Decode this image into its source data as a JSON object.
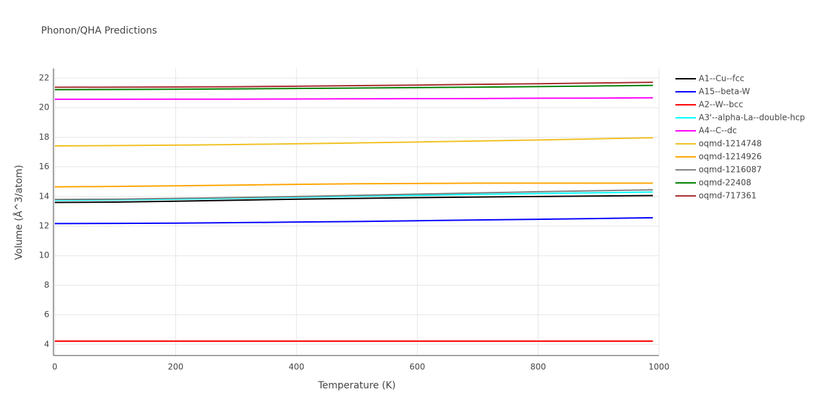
{
  "chart_data": {
    "type": "line",
    "title": "Phonon/QHA Predictions",
    "x_label": "Temperature (K)",
    "y_label": "Volume (Å^3/atom)",
    "x": [
      0,
      100,
      200,
      300,
      400,
      500,
      600,
      700,
      800,
      900,
      990
    ],
    "xlim": [
      0,
      1000
    ],
    "xticks": [
      0,
      200,
      400,
      600,
      800,
      1000
    ],
    "ylim": [
      3.25,
      22.65
    ],
    "yticks": [
      4,
      6,
      8,
      10,
      12,
      14,
      16,
      18,
      20,
      22
    ],
    "grid": true,
    "legend": "right",
    "series": [
      {
        "name": "A1--Cu--fcc",
        "color": "#000000",
        "values": [
          13.6,
          13.62,
          13.68,
          13.75,
          13.82,
          13.87,
          13.92,
          13.96,
          14.0,
          14.03,
          14.06
        ]
      },
      {
        "name": "A15--beta-W",
        "color": "#0000ff",
        "values": [
          12.17,
          12.18,
          12.2,
          12.23,
          12.27,
          12.31,
          12.36,
          12.41,
          12.46,
          12.51,
          12.56
        ]
      },
      {
        "name": "A2--W--bcc",
        "color": "#ff0000",
        "values": [
          4.22,
          4.22,
          4.22,
          4.22,
          4.22,
          4.22,
          4.22,
          4.22,
          4.22,
          4.22,
          4.22
        ]
      },
      {
        "name": "A3'--alpha-La--double-hcp",
        "color": "#00ffff",
        "values": [
          13.75,
          13.77,
          13.82,
          13.88,
          13.95,
          14.02,
          14.08,
          14.14,
          14.2,
          14.25,
          14.3
        ]
      },
      {
        "name": "A4--C--dc",
        "color": "#ff00ff",
        "values": [
          20.57,
          20.57,
          20.58,
          20.58,
          20.59,
          20.6,
          20.61,
          20.62,
          20.64,
          20.65,
          20.67
        ]
      },
      {
        "name": "oqmd-1214748",
        "color": "#f0c020",
        "values": [
          17.42,
          17.44,
          17.47,
          17.51,
          17.56,
          17.62,
          17.68,
          17.75,
          17.82,
          17.9,
          17.97
        ]
      },
      {
        "name": "oqmd-1214926",
        "color": "#ffa500",
        "values": [
          14.65,
          14.68,
          14.72,
          14.77,
          14.82,
          14.86,
          14.88,
          14.9,
          14.9,
          14.9,
          14.9
        ]
      },
      {
        "name": "oqmd-1216087",
        "color": "#808080",
        "values": [
          13.8,
          13.82,
          13.87,
          13.93,
          14.0,
          14.08,
          14.16,
          14.24,
          14.32,
          14.39,
          14.45
        ]
      },
      {
        "name": "oqmd-22408",
        "color": "#008000",
        "values": [
          21.22,
          21.23,
          21.25,
          21.27,
          21.3,
          21.33,
          21.36,
          21.39,
          21.43,
          21.47,
          21.51
        ]
      },
      {
        "name": "oqmd-717361",
        "color": "#a52a2a",
        "values": [
          21.38,
          21.39,
          21.4,
          21.42,
          21.45,
          21.49,
          21.53,
          21.58,
          21.62,
          21.67,
          21.72
        ]
      }
    ]
  }
}
